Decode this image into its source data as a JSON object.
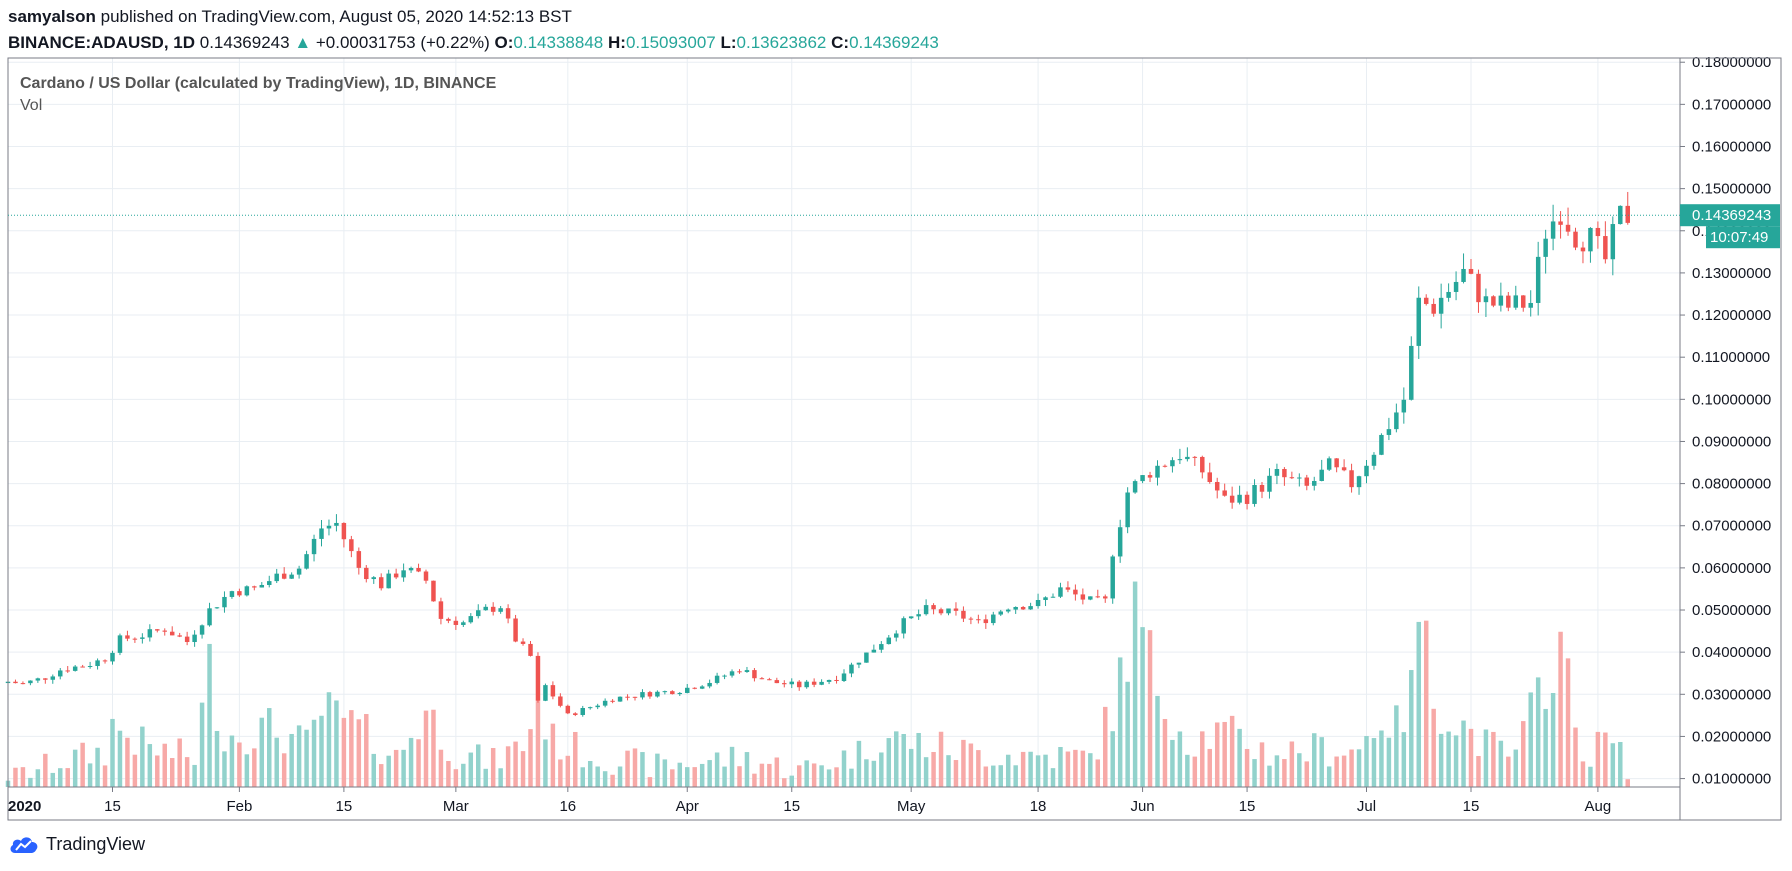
{
  "header": {
    "user": "samyalson",
    "published": " published on TradingView.com, August 05, 2020 14:52:13 BST",
    "symbol": "BINANCE:ADAUSD, 1D",
    "last": "0.14369243",
    "change_arrow": "▲",
    "change": "+0.00031753 (+0.22%)",
    "o_label": "O:",
    "o_value": "0.14338848",
    "h_label": "H:",
    "h_value": "0.15093007",
    "l_label": "L:",
    "l_value": "0.13623862",
    "c_label": "C:",
    "c_value": "0.14369243"
  },
  "footer": {
    "logo_icon": "tradingview-cloud-icon",
    "brand": "TradingView"
  },
  "colors": {
    "up": "#26a69a",
    "down": "#ef5350",
    "vol_up": "#92d2cc",
    "vol_down": "#f7a9a7",
    "grid": "#e9eef3",
    "price_line": "#26a69a"
  },
  "chart_data": {
    "type": "candlestick",
    "title": "Cardano / US Dollar (calculated by TradingView), 1D, BINANCE",
    "volume_label": "Vol",
    "x_range": [
      "2020-01-01",
      "2020-08-12"
    ],
    "ylim": [
      0.008,
      0.181
    ],
    "y_ticks": [
      "0.01000000",
      "0.02000000",
      "0.03000000",
      "0.04000000",
      "0.05000000",
      "0.06000000",
      "0.07000000",
      "0.08000000",
      "0.09000000",
      "0.10000000",
      "0.11000000",
      "0.12000000",
      "0.13000000",
      "0.14000000",
      "0.15000000",
      "0.16000000",
      "0.17000000",
      "0.18000000"
    ],
    "x_ticks": [
      {
        "date": "2020-01-01",
        "label": "2020",
        "bold": true
      },
      {
        "date": "2020-01-15",
        "label": "15"
      },
      {
        "date": "2020-02-01",
        "label": "Feb"
      },
      {
        "date": "2020-02-15",
        "label": "15"
      },
      {
        "date": "2020-03-01",
        "label": "Mar"
      },
      {
        "date": "2020-03-16",
        "label": "16"
      },
      {
        "date": "2020-04-01",
        "label": "Apr"
      },
      {
        "date": "2020-04-15",
        "label": "15"
      },
      {
        "date": "2020-05-01",
        "label": "May"
      },
      {
        "date": "2020-05-18",
        "label": "18"
      },
      {
        "date": "2020-06-01",
        "label": "Jun"
      },
      {
        "date": "2020-06-15",
        "label": "15"
      },
      {
        "date": "2020-07-01",
        "label": "Jul"
      },
      {
        "date": "2020-07-15",
        "label": "15"
      },
      {
        "date": "2020-08-01",
        "label": "Aug"
      }
    ],
    "last_price": "0.14369243",
    "last_price_value": 0.14369243,
    "countdown": "10:07:49",
    "grid": true,
    "close_anchors": [
      [
        "2020-01-01",
        0.033
      ],
      [
        "2020-01-03",
        0.0325
      ],
      [
        "2020-01-06",
        0.034
      ],
      [
        "2020-01-08",
        0.0358
      ],
      [
        "2020-01-12",
        0.0372
      ],
      [
        "2020-01-14",
        0.0385
      ],
      [
        "2020-01-16",
        0.043
      ],
      [
        "2020-01-19",
        0.044
      ],
      [
        "2020-01-22",
        0.0455
      ],
      [
        "2020-01-25",
        0.0425
      ],
      [
        "2020-01-28",
        0.05
      ],
      [
        "2020-01-31",
        0.0545
      ],
      [
        "2020-02-03",
        0.055
      ],
      [
        "2020-02-06",
        0.058
      ],
      [
        "2020-02-09",
        0.06
      ],
      [
        "2020-02-12",
        0.0695
      ],
      [
        "2020-02-14",
        0.0705
      ],
      [
        "2020-02-17",
        0.06
      ],
      [
        "2020-02-20",
        0.056
      ],
      [
        "2020-02-23",
        0.06
      ],
      [
        "2020-02-26",
        0.057
      ],
      [
        "2020-02-28",
        0.048
      ],
      [
        "2020-03-02",
        0.047
      ],
      [
        "2020-03-05",
        0.05
      ],
      [
        "2020-03-07",
        0.051
      ],
      [
        "2020-03-09",
        0.043
      ],
      [
        "2020-03-11",
        0.039
      ],
      [
        "2020-03-12",
        0.028
      ],
      [
        "2020-03-13",
        0.032
      ],
      [
        "2020-03-16",
        0.025
      ],
      [
        "2020-03-19",
        0.027
      ],
      [
        "2020-03-22",
        0.029
      ],
      [
        "2020-03-26",
        0.03
      ],
      [
        "2020-03-31",
        0.031
      ],
      [
        "2020-04-04",
        0.033
      ],
      [
        "2020-04-08",
        0.036
      ],
      [
        "2020-04-12",
        0.033
      ],
      [
        "2020-04-16",
        0.032
      ],
      [
        "2020-04-21",
        0.034
      ],
      [
        "2020-04-26",
        0.041
      ],
      [
        "2020-04-30",
        0.047
      ],
      [
        "2020-05-03",
        0.05
      ],
      [
        "2020-05-07",
        0.049
      ],
      [
        "2020-05-10",
        0.047
      ],
      [
        "2020-05-14",
        0.051
      ],
      [
        "2020-05-18",
        0.0515
      ],
      [
        "2020-05-21",
        0.055
      ],
      [
        "2020-05-25",
        0.052
      ],
      [
        "2020-05-27",
        0.052
      ],
      [
        "2020-05-28",
        0.064
      ],
      [
        "2020-05-30",
        0.078
      ],
      [
        "2020-06-02",
        0.083
      ],
      [
        "2020-06-06",
        0.087
      ],
      [
        "2020-06-09",
        0.083
      ],
      [
        "2020-06-12",
        0.076
      ],
      [
        "2020-06-15",
        0.077
      ],
      [
        "2020-06-19",
        0.082
      ],
      [
        "2020-06-23",
        0.079
      ],
      [
        "2020-06-26",
        0.084
      ],
      [
        "2020-06-29",
        0.08
      ],
      [
        "2020-07-02",
        0.088
      ],
      [
        "2020-07-06",
        0.1
      ],
      [
        "2020-07-08",
        0.123
      ],
      [
        "2020-07-10",
        0.122
      ],
      [
        "2020-07-14",
        0.13
      ],
      [
        "2020-07-17",
        0.123
      ],
      [
        "2020-07-20",
        0.122
      ],
      [
        "2020-07-23",
        0.123
      ],
      [
        "2020-07-25",
        0.14
      ],
      [
        "2020-07-27",
        0.145
      ],
      [
        "2020-07-29",
        0.139
      ],
      [
        "2020-07-31",
        0.138
      ],
      [
        "2020-08-02",
        0.133
      ],
      [
        "2020-08-04",
        0.1434
      ],
      [
        "2020-08-05",
        0.14369243
      ]
    ],
    "volume_anchors": [
      [
        "2020-01-01",
        0.01
      ],
      [
        "2020-01-08",
        0.014
      ],
      [
        "2020-01-14",
        0.0165
      ],
      [
        "2020-01-15",
        0.0225
      ],
      [
        "2020-01-20",
        0.017
      ],
      [
        "2020-01-26",
        0.015
      ],
      [
        "2020-01-28",
        0.036
      ],
      [
        "2020-01-30",
        0.02
      ],
      [
        "2020-02-05",
        0.022
      ],
      [
        "2020-02-10",
        0.018
      ],
      [
        "2020-02-12",
        0.026
      ],
      [
        "2020-02-16",
        0.023
      ],
      [
        "2020-02-22",
        0.015
      ],
      [
        "2020-02-26",
        0.026
      ],
      [
        "2020-03-01",
        0.016
      ],
      [
        "2020-03-06",
        0.014
      ],
      [
        "2020-03-10",
        0.018
      ],
      [
        "2020-03-12",
        0.028
      ],
      [
        "2020-03-14",
        0.019
      ],
      [
        "2020-03-20",
        0.015
      ],
      [
        "2020-03-28",
        0.013
      ],
      [
        "2020-04-08",
        0.015
      ],
      [
        "2020-04-16",
        0.012
      ],
      [
        "2020-04-24",
        0.016
      ],
      [
        "2020-04-27",
        0.02
      ],
      [
        "2020-05-03",
        0.018
      ],
      [
        "2020-05-10",
        0.016
      ],
      [
        "2020-05-18",
        0.0155
      ],
      [
        "2020-05-25",
        0.015
      ],
      [
        "2020-05-28",
        0.026
      ],
      [
        "2020-05-31",
        0.049
      ],
      [
        "2020-06-03",
        0.032
      ],
      [
        "2020-06-07",
        0.019
      ],
      [
        "2020-06-12",
        0.021
      ],
      [
        "2020-06-18",
        0.016
      ],
      [
        "2020-06-24",
        0.017
      ],
      [
        "2020-06-30",
        0.017
      ],
      [
        "2020-07-03",
        0.025
      ],
      [
        "2020-07-05",
        0.022
      ],
      [
        "2020-07-07",
        0.03
      ],
      [
        "2020-07-08",
        0.051
      ],
      [
        "2020-07-10",
        0.029
      ],
      [
        "2020-07-16",
        0.019
      ],
      [
        "2020-07-21",
        0.015
      ],
      [
        "2020-07-25",
        0.035
      ],
      [
        "2020-07-27",
        0.042
      ],
      [
        "2020-07-29",
        0.022
      ],
      [
        "2020-07-31",
        0.015
      ],
      [
        "2020-08-02",
        0.02
      ],
      [
        "2020-08-05",
        0.013
      ]
    ]
  }
}
